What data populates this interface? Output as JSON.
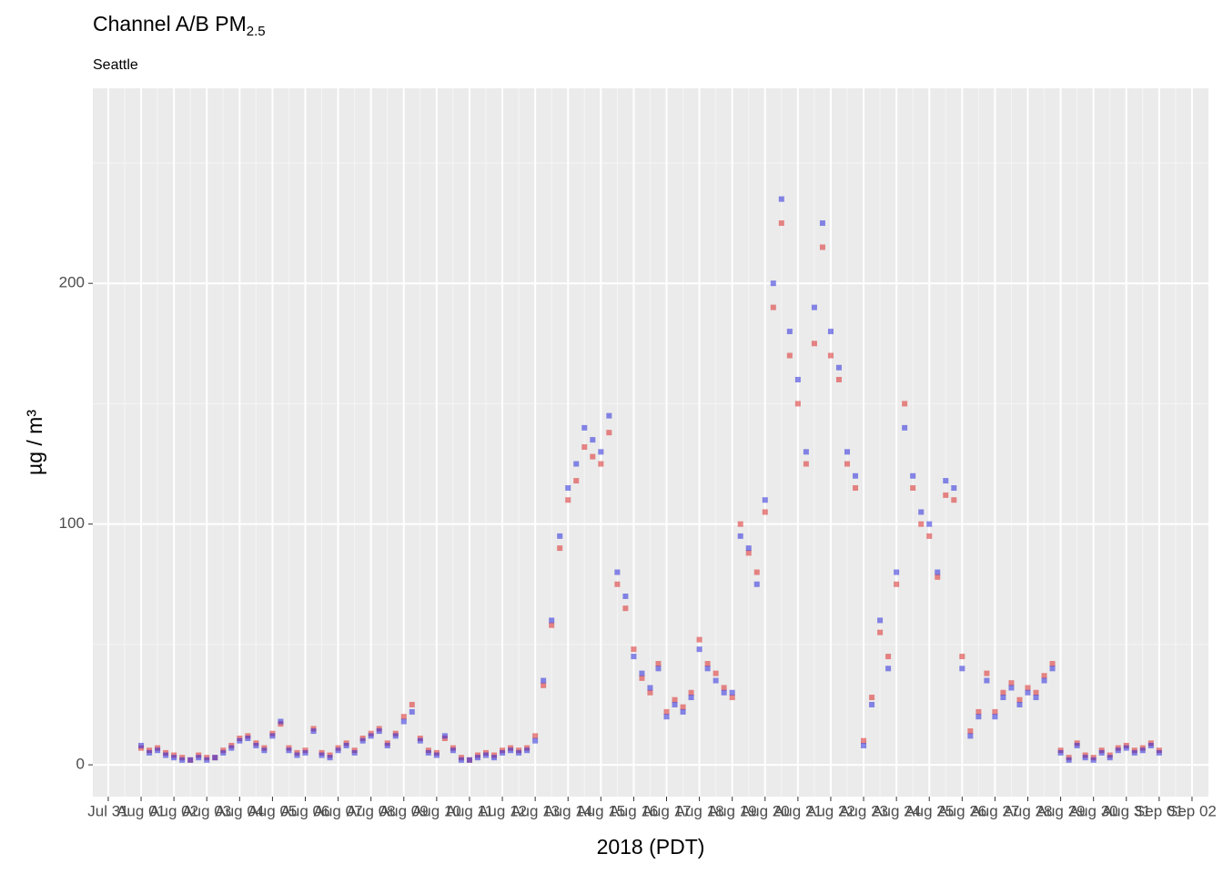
{
  "chart_data": {
    "type": "scatter",
    "title": "Channel A/B PM",
    "title_subscript": "2.5",
    "subtitle": "Seattle",
    "x_label": "2018 (PDT)",
    "y_label": "µg / m³",
    "xlim": [
      -0.47,
      33.5
    ],
    "ylim": [
      -13.2,
      281
    ],
    "xticks": [
      {
        "value": 0,
        "label": "Jul 31"
      },
      {
        "value": 1,
        "label": "Aug 01"
      },
      {
        "value": 2,
        "label": "Aug 02"
      },
      {
        "value": 3,
        "label": "Aug 03"
      },
      {
        "value": 4,
        "label": "Aug 04"
      },
      {
        "value": 5,
        "label": "Aug 05"
      },
      {
        "value": 6,
        "label": "Aug 06"
      },
      {
        "value": 7,
        "label": "Aug 07"
      },
      {
        "value": 8,
        "label": "Aug 08"
      },
      {
        "value": 9,
        "label": "Aug 09"
      },
      {
        "value": 10,
        "label": "Aug 10"
      },
      {
        "value": 11,
        "label": "Aug 11"
      },
      {
        "value": 12,
        "label": "Aug 12"
      },
      {
        "value": 13,
        "label": "Aug 13"
      },
      {
        "value": 14,
        "label": "Aug 14"
      },
      {
        "value": 15,
        "label": "Aug 15"
      },
      {
        "value": 16,
        "label": "Aug 16"
      },
      {
        "value": 17,
        "label": "Aug 17"
      },
      {
        "value": 18,
        "label": "Aug 18"
      },
      {
        "value": 19,
        "label": "Aug 19"
      },
      {
        "value": 20,
        "label": "Aug 20"
      },
      {
        "value": 21,
        "label": "Aug 21"
      },
      {
        "value": 22,
        "label": "Aug 22"
      },
      {
        "value": 23,
        "label": "Aug 23"
      },
      {
        "value": 24,
        "label": "Aug 24"
      },
      {
        "value": 25,
        "label": "Aug 25"
      },
      {
        "value": 26,
        "label": "Aug 26"
      },
      {
        "value": 27,
        "label": "Aug 27"
      },
      {
        "value": 28,
        "label": "Aug 28"
      },
      {
        "value": 29,
        "label": "Aug 29"
      },
      {
        "value": 30,
        "label": "Aug 30"
      },
      {
        "value": 31,
        "label": "Aug 31"
      },
      {
        "value": 32,
        "label": "Sep 01"
      },
      {
        "value": 33,
        "label": "Sep 02"
      }
    ],
    "yticks": [
      0,
      100,
      200
    ],
    "yminor": [
      50,
      150,
      250
    ],
    "grid": true,
    "x": [
      1,
      1.25,
      1.5,
      1.75,
      2,
      2.25,
      2.5,
      2.75,
      3,
      3.25,
      3.5,
      3.75,
      4,
      4.25,
      4.5,
      4.75,
      5,
      5.25,
      5.5,
      5.75,
      6,
      6.25,
      6.5,
      6.75,
      7,
      7.25,
      7.5,
      7.75,
      8,
      8.25,
      8.5,
      8.75,
      9,
      9.25,
      9.5,
      9.75,
      10,
      10.25,
      10.5,
      10.75,
      11,
      11.25,
      11.5,
      11.75,
      12,
      12.25,
      12.5,
      12.75,
      13,
      13.25,
      13.5,
      13.75,
      14,
      14.25,
      14.5,
      14.75,
      15,
      15.25,
      15.5,
      15.75,
      16,
      16.25,
      16.5,
      16.75,
      17,
      17.25,
      17.5,
      17.75,
      18,
      18.25,
      18.5,
      18.75,
      19,
      19.25,
      19.5,
      19.75,
      20,
      20.25,
      20.5,
      20.75,
      21,
      21.25,
      21.5,
      21.75,
      22,
      22.25,
      22.5,
      22.75,
      23,
      23.25,
      23.5,
      23.75,
      24,
      24.25,
      24.5,
      24.75,
      25,
      25.25,
      25.5,
      25.75,
      26,
      26.25,
      26.5,
      26.75,
      27,
      27.25,
      27.5,
      27.75,
      28,
      28.25,
      28.5,
      28.75,
      29,
      29.25,
      29.5,
      29.75,
      30,
      30.25,
      30.5,
      30.75,
      31,
      31.25,
      31.5,
      31.75,
      32
    ],
    "series": [
      {
        "color": "#dd2a2a",
        "values": [
          7,
          6,
          7,
          5,
          4,
          3,
          2,
          4,
          3,
          3,
          6,
          8,
          11,
          12,
          9,
          7,
          13,
          17,
          7,
          5,
          6,
          15,
          5,
          4,
          7,
          9,
          6,
          11,
          13,
          15,
          9,
          13,
          20,
          25,
          11,
          6,
          5,
          11,
          7,
          3,
          2,
          4,
          5,
          4,
          6,
          7,
          6,
          7,
          12,
          33,
          58,
          90,
          110,
          118,
          132,
          128,
          125,
          138,
          75,
          65,
          48,
          36,
          30,
          42,
          22,
          27,
          24,
          30,
          52,
          42,
          38,
          32,
          28,
          100,
          88,
          80,
          105,
          190,
          225,
          170,
          150,
          125,
          175,
          215,
          170,
          160,
          125,
          115,
          10,
          28,
          55,
          45,
          75,
          150,
          115,
          100,
          95,
          78,
          112,
          110,
          45,
          14,
          22,
          38,
          22,
          30,
          34,
          27,
          32,
          30,
          37,
          42,
          6,
          3,
          9,
          4,
          3,
          6,
          4,
          7,
          8,
          6,
          7,
          9,
          6
        ]
      },
      {
        "color": "#2a2add",
        "values": [
          8,
          5,
          6,
          4,
          3,
          2,
          2,
          3,
          2,
          3,
          5,
          7,
          10,
          11,
          8,
          6,
          12,
          18,
          6,
          4,
          5,
          14,
          4,
          3,
          6,
          8,
          5,
          10,
          12,
          14,
          8,
          12,
          18,
          22,
          10,
          5,
          4,
          12,
          6,
          2,
          2,
          3,
          4,
          3,
          5,
          6,
          5,
          6,
          10,
          35,
          60,
          95,
          115,
          125,
          140,
          135,
          130,
          145,
          80,
          70,
          45,
          38,
          32,
          40,
          20,
          25,
          22,
          28,
          48,
          40,
          35,
          30,
          30,
          95,
          90,
          75,
          110,
          200,
          235,
          180,
          160,
          130,
          190,
          225,
          180,
          165,
          130,
          120,
          8,
          25,
          60,
          40,
          80,
          140,
          120,
          105,
          100,
          80,
          118,
          115,
          40,
          12,
          20,
          35,
          20,
          28,
          32,
          25,
          30,
          28,
          35,
          40,
          5,
          2,
          8,
          3,
          2,
          5,
          3,
          6,
          7,
          5,
          6,
          8,
          5
        ]
      }
    ]
  }
}
